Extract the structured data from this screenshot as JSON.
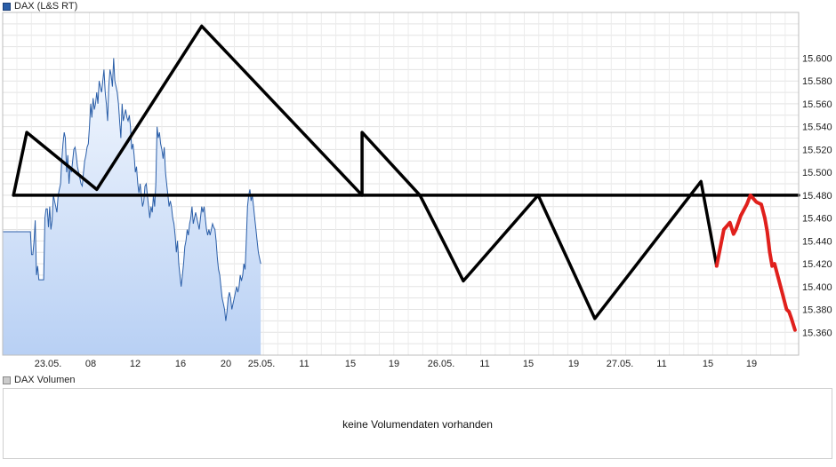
{
  "legend": {
    "price_label": "DAX (L&S RT)",
    "volume_label": "DAX Volumen",
    "price_color": "#2a5ea8",
    "volume_color": "#cccccc"
  },
  "volume": {
    "message": "keine Volumendaten vorhanden"
  },
  "chart_data": {
    "type": "area",
    "title": "",
    "xlabel": "",
    "ylabel": "",
    "grid": true,
    "ylim": [
      15340,
      15640
    ],
    "y_ticks": [
      15360,
      15380,
      15400,
      15420,
      15440,
      15460,
      15480,
      15500,
      15520,
      15540,
      15560,
      15580,
      15600
    ],
    "y_tick_labels": [
      "15.360",
      "15.380",
      "15.400",
      "15.420",
      "15.440",
      "15.460",
      "15.480",
      "15.500",
      "15.520",
      "15.540",
      "15.560",
      "15.580",
      "15.600"
    ],
    "x_tick_labels": [
      "23.05.",
      "08",
      "12",
      "16",
      "20",
      "25.05.",
      "11",
      "15",
      "19",
      "26.05.",
      "11",
      "15",
      "19",
      "27.05.",
      "11",
      "15",
      "19"
    ],
    "series": [
      {
        "values": [
          15448,
          15448,
          15448,
          15448,
          15448,
          15448,
          15448,
          15448,
          15448,
          15448,
          15448,
          15448,
          15448,
          15448,
          15448,
          15448,
          15448,
          15448,
          15448,
          15448,
          15448,
          15448,
          15448,
          15448,
          15428,
          15428,
          15440,
          15458,
          15410,
          15418,
          15406,
          15406,
          15406,
          15406,
          15406,
          15460,
          15468,
          15468,
          15452,
          15470,
          15450,
          15458,
          15480,
          15475,
          15470,
          15465,
          15480,
          15485,
          15490,
          15510,
          15525,
          15535,
          15530,
          15500,
          15515,
          15490,
          15505,
          15500,
          15510,
          15520,
          15522,
          15515,
          15505,
          15500,
          15495,
          15490,
          15488,
          15500,
          15510,
          15515,
          15522,
          15525,
          15540,
          15560,
          15548,
          15565,
          15555,
          15560,
          15570,
          15560,
          15580,
          15575,
          15570,
          15580,
          15590,
          15570,
          15560,
          15545,
          15575,
          15590,
          15585,
          15575,
          15600,
          15580,
          15575,
          15570,
          15560,
          15545,
          15530,
          15560,
          15545,
          15550,
          15555,
          15548,
          15545,
          15550,
          15540,
          15520,
          15525,
          15515,
          15500,
          15505,
          15490,
          15482,
          15490,
          15480,
          15470,
          15475,
          15488,
          15490,
          15480,
          15470,
          15460,
          15470,
          15465,
          15480,
          15470,
          15490,
          15540,
          15530,
          15535,
          15525,
          15520,
          15512,
          15522,
          15500,
          15490,
          15480,
          15470,
          15475,
          15470,
          15460,
          15455,
          15445,
          15430,
          15440,
          15420,
          15410,
          15400,
          15410,
          15420,
          15435,
          15440,
          15450,
          15445,
          15455,
          15460,
          15470,
          15455,
          15460,
          15465,
          15460,
          15455,
          15450,
          15460,
          15470,
          15465,
          15470,
          15460,
          15450,
          15445,
          15450,
          15445,
          15450,
          15455,
          15452,
          15450,
          15440,
          15425,
          15415,
          15410,
          15400,
          15390,
          15385,
          15380,
          15370,
          15378,
          15390,
          15395,
          15390,
          15380,
          15385,
          15390,
          15395,
          15400,
          15395,
          15400,
          15410,
          15405,
          15410,
          15420,
          15415,
          15440,
          15470,
          15480,
          15485,
          15475,
          15480,
          15470,
          15460,
          15450,
          15440,
          15430,
          15425,
          15420
        ]
      }
    ],
    "annotations": [
      {
        "type": "polyline",
        "color": "#000000",
        "points": [
          [
            9,
            15480
          ],
          [
            20,
            15535
          ],
          [
            78,
            15485
          ],
          [
            165,
            15628
          ],
          [
            298,
            15480
          ],
          [
            298,
            15535
          ],
          [
            346,
            15480
          ],
          [
            382,
            15405
          ],
          [
            444,
            15480
          ],
          [
            491,
            15372
          ],
          [
            579,
            15492
          ],
          [
            592,
            15418
          ]
        ]
      },
      {
        "type": "line",
        "color": "#000000",
        "points": [
          [
            9,
            15480
          ],
          [
            660,
            15480
          ]
        ]
      },
      {
        "type": "polyline",
        "color": "#e0201c",
        "points": [
          [
            592,
            15418
          ],
          [
            598,
            15450
          ],
          [
            603,
            15456
          ],
          [
            606,
            15446
          ],
          [
            608,
            15450
          ],
          [
            612,
            15462
          ],
          [
            617,
            15472
          ],
          [
            620,
            15480
          ],
          [
            625,
            15474
          ],
          [
            629,
            15472
          ],
          [
            632,
            15460
          ],
          [
            634,
            15448
          ],
          [
            636,
            15430
          ],
          [
            638,
            15418
          ],
          [
            640,
            15420
          ],
          [
            642,
            15412
          ],
          [
            645,
            15400
          ],
          [
            647,
            15392
          ],
          [
            650,
            15380
          ],
          [
            652,
            15378
          ],
          [
            654,
            15372
          ],
          [
            657,
            15362
          ]
        ]
      }
    ]
  }
}
